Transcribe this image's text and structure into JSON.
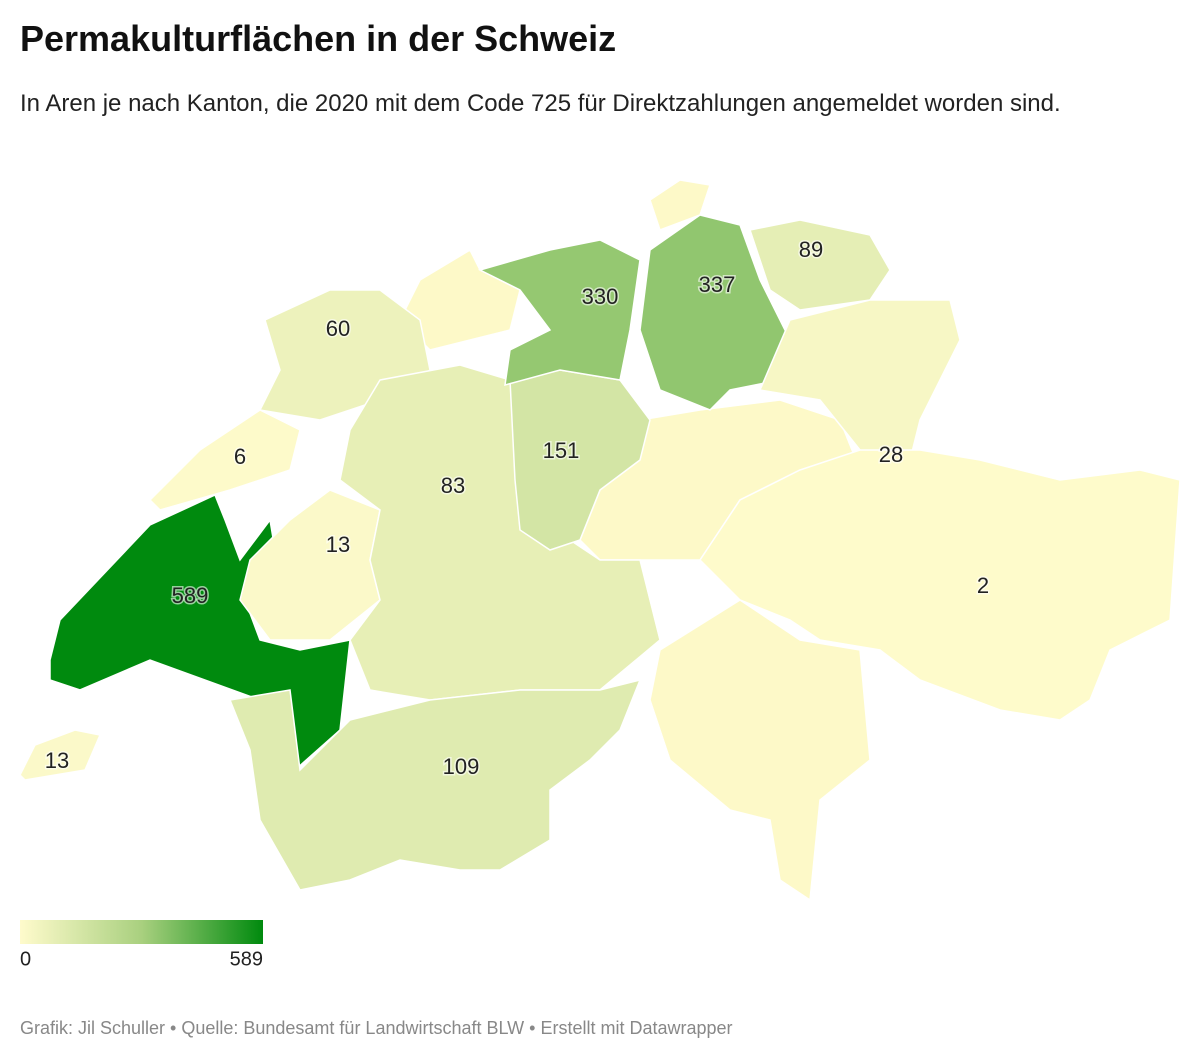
{
  "title": "Permakulturflächen in der Schweiz",
  "subtitle": "In Aren je nach Kanton, die 2020 mit dem Code 725 für Direktzahlungen angemeldet worden sind.",
  "regions": [
    {
      "value": 60
    },
    {
      "value": 6
    },
    {
      "value": 589
    },
    {
      "value": 13
    },
    {
      "value": 13
    },
    {
      "value": 83
    },
    {
      "value": 109
    },
    {
      "value": 151
    },
    {
      "value": 330
    },
    {
      "value": 337
    },
    {
      "value": 89
    },
    {
      "value": 28
    },
    {
      "value": 2
    }
  ],
  "legend": {
    "min": 0,
    "max": 589,
    "colors": [
      "#fffbcc",
      "#a9d07f",
      "#008a0e"
    ]
  },
  "footer": "Grafik: Jil Schuller • Quelle: Bundesamt für Landwirtschaft BLW • Erstellt mit Datawrapper"
}
